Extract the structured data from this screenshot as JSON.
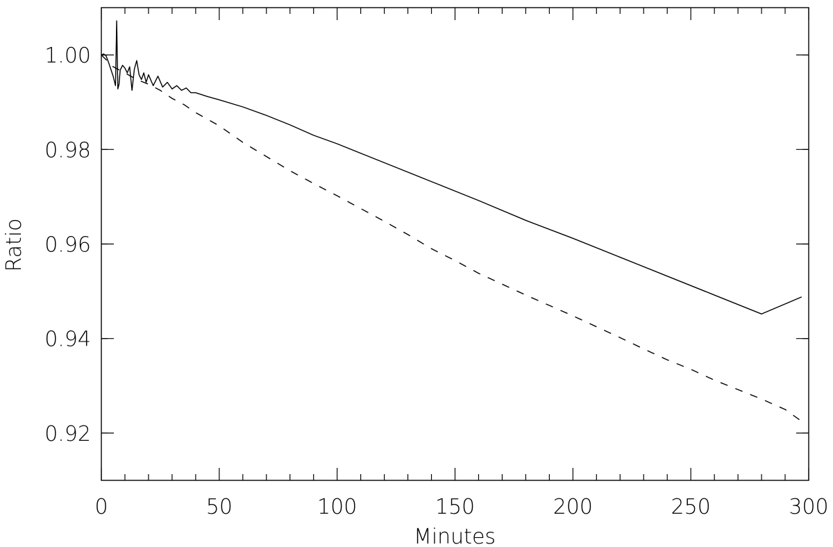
{
  "chart_data": {
    "type": "line",
    "title": "",
    "xlabel": "Minutes",
    "ylabel": "Ratio",
    "xlim": [
      0,
      300
    ],
    "ylim": [
      0.91,
      1.01
    ],
    "xticks": [
      0,
      50,
      100,
      150,
      200,
      250,
      300
    ],
    "xtick_labels": [
      "0",
      "50",
      "100",
      "150",
      "200",
      "250",
      "300"
    ],
    "yticks": [
      0.92,
      0.94,
      0.96,
      0.98,
      1.0
    ],
    "ytick_labels": [
      "0.92",
      "0.94",
      "0.96",
      "0.98",
      "1.00"
    ],
    "grid": false,
    "legend": "none",
    "series": [
      {
        "style": "solid",
        "color": "#000000",
        "x": [
          0,
          1,
          2,
          3,
          4,
          5,
          6,
          6.5,
          7,
          7.5,
          8,
          9,
          10,
          11,
          12,
          13,
          14,
          15,
          16,
          17,
          18,
          19,
          20,
          22,
          24,
          26,
          28,
          30,
          32,
          34,
          36,
          38,
          40,
          45,
          50,
          60,
          70,
          80,
          90,
          100,
          120,
          140,
          160,
          180,
          200,
          220,
          240,
          260,
          280,
          297
        ],
        "y": [
          1.0,
          1.0002,
          0.9998,
          0.9985,
          0.997,
          0.9955,
          0.9935,
          1.0072,
          0.9928,
          0.9938,
          0.9968,
          0.9978,
          0.9972,
          0.9962,
          0.9975,
          0.9925,
          0.997,
          0.9988,
          0.9958,
          0.9948,
          0.9962,
          0.9942,
          0.9958,
          0.9935,
          0.9955,
          0.9932,
          0.9942,
          0.9928,
          0.9935,
          0.9925,
          0.993,
          0.992,
          0.992,
          0.9912,
          0.9905,
          0.989,
          0.9872,
          0.9852,
          0.983,
          0.9812,
          0.9772,
          0.9732,
          0.9692,
          0.965,
          0.9612,
          0.9572,
          0.9532,
          0.9492,
          0.9452,
          0.9488
        ]
      },
      {
        "style": "dashed",
        "color": "#000000",
        "x": [
          0,
          5,
          10,
          15,
          20,
          25,
          30,
          35,
          40,
          50,
          60,
          70,
          80,
          90,
          100,
          110,
          120,
          130,
          140,
          150,
          160,
          170,
          180,
          190,
          200,
          210,
          220,
          230,
          240,
          250,
          260,
          270,
          280,
          290,
          297
        ],
        "y": [
          1.0,
          0.9975,
          0.9962,
          0.9948,
          0.9938,
          0.9925,
          0.9908,
          0.9895,
          0.9878,
          0.985,
          0.9815,
          0.9785,
          0.9755,
          0.9728,
          0.9702,
          0.9675,
          0.9648,
          0.962,
          0.959,
          0.9565,
          0.9538,
          0.9515,
          0.9492,
          0.947,
          0.9448,
          0.9425,
          0.9402,
          0.9378,
          0.9355,
          0.9335,
          0.9312,
          0.9292,
          0.9272,
          0.925,
          0.9225
        ]
      }
    ]
  }
}
